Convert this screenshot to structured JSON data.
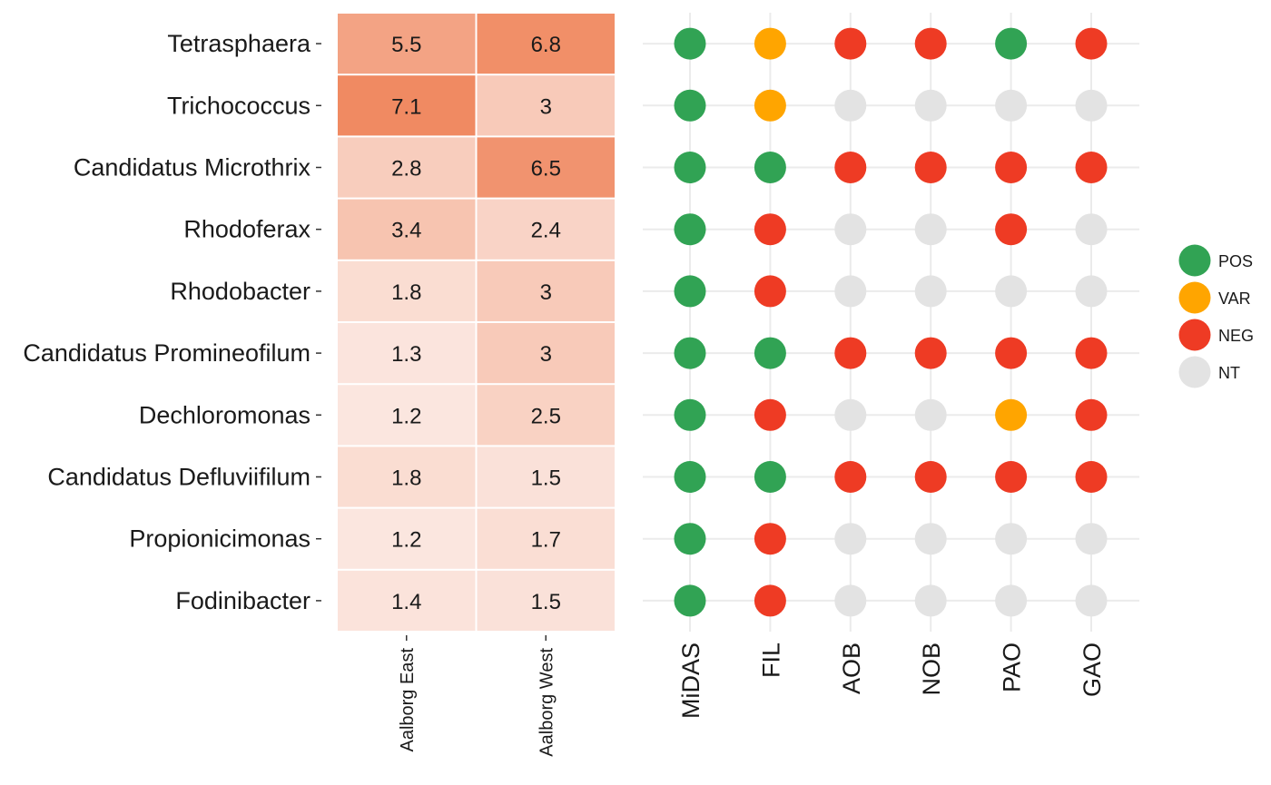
{
  "chart_data": [
    {
      "type": "heatmap",
      "rows": [
        "Tetrasphaera",
        "Trichococcus",
        "Candidatus Microthrix",
        "Rhodoferax",
        "Rhodobacter",
        "Candidatus Promineofilum",
        "Dechloromonas",
        "Candidatus Defluviifilum",
        "Propionicimonas",
        "Fodinibacter"
      ],
      "columns": [
        "Aalborg East",
        "Aalborg West"
      ],
      "values": [
        [
          5.5,
          6.8
        ],
        [
          7.1,
          3
        ],
        [
          2.8,
          6.5
        ],
        [
          3.4,
          2.4
        ],
        [
          1.8,
          3
        ],
        [
          1.3,
          3
        ],
        [
          1.2,
          2.5
        ],
        [
          1.8,
          1.5
        ],
        [
          1.2,
          1.7
        ],
        [
          1.4,
          1.5
        ]
      ],
      "color_low": "#fbe6df",
      "color_high": "#f08a62"
    },
    {
      "type": "scatter",
      "rows": [
        "Tetrasphaera",
        "Trichococcus",
        "Candidatus Microthrix",
        "Rhodoferax",
        "Rhodobacter",
        "Candidatus Promineofilum",
        "Dechloromonas",
        "Candidatus Defluviifilum",
        "Propionicimonas",
        "Fodinibacter"
      ],
      "traits": [
        "MiDAS",
        "FIL",
        "AOB",
        "NOB",
        "PAO",
        "GAO"
      ],
      "values": [
        [
          "POS",
          "VAR",
          "NEG",
          "NEG",
          "POS",
          "NEG"
        ],
        [
          "POS",
          "VAR",
          "NT",
          "NT",
          "NT",
          "NT"
        ],
        [
          "POS",
          "POS",
          "NEG",
          "NEG",
          "NEG",
          "NEG"
        ],
        [
          "POS",
          "NEG",
          "NT",
          "NT",
          "NEG",
          "NT"
        ],
        [
          "POS",
          "NEG",
          "NT",
          "NT",
          "NT",
          "NT"
        ],
        [
          "POS",
          "POS",
          "NEG",
          "NEG",
          "NEG",
          "NEG"
        ],
        [
          "POS",
          "NEG",
          "NT",
          "NT",
          "VAR",
          "NEG"
        ],
        [
          "POS",
          "POS",
          "NEG",
          "NEG",
          "NEG",
          "NEG"
        ],
        [
          "POS",
          "NEG",
          "NT",
          "NT",
          "NT",
          "NT"
        ],
        [
          "POS",
          "NEG",
          "NT",
          "NT",
          "NT",
          "NT"
        ]
      ],
      "legend": [
        {
          "label": "POS",
          "color": "#31a354"
        },
        {
          "label": "VAR",
          "color": "#ffa500"
        },
        {
          "label": "NEG",
          "color": "#ee3b24"
        },
        {
          "label": "NT",
          "color": "#e3e3e3"
        }
      ],
      "legend_position": "right",
      "grid": true
    }
  ]
}
